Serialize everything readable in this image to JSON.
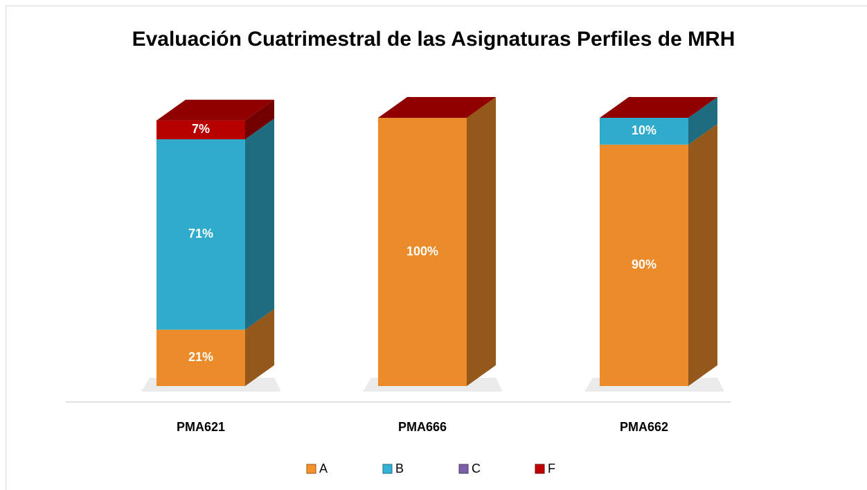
{
  "chart_data": {
    "type": "bar",
    "stacked": true,
    "title": "Evaluación Cuatrimestral de las Asignaturas Perfiles de MRH",
    "categories": [
      "PMA621",
      "PMA666",
      "PMA662"
    ],
    "series": [
      {
        "name": "A",
        "color": "#f7922b",
        "values": [
          21,
          100,
          90
        ],
        "value_labels": [
          "21%",
          "100%",
          "90%"
        ]
      },
      {
        "name": "B",
        "color": "#33b4d6",
        "values": [
          71,
          0,
          10
        ],
        "value_labels": [
          "71%",
          null,
          "10%"
        ]
      },
      {
        "name": "C",
        "color": "#7d5fa8",
        "values": [
          0,
          0,
          0
        ],
        "value_labels": [
          null,
          null,
          null
        ]
      },
      {
        "name": "F",
        "color": "#c00000",
        "values": [
          7,
          0,
          0
        ],
        "value_labels": [
          "7%",
          null,
          null
        ]
      }
    ],
    "legend": "bottom"
  }
}
